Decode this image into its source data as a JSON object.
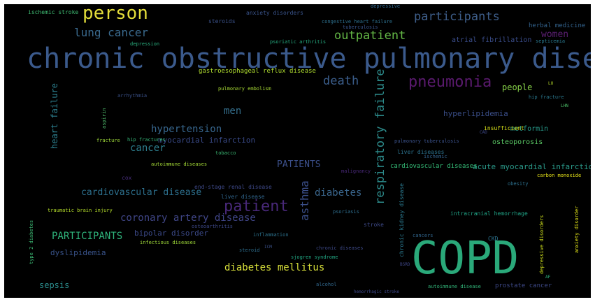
{
  "words": [
    {
      "text": "chronic obstructive pulmonary disease",
      "color": "#3b5a8c"
    },
    {
      "text": "COPD",
      "color": "#2aa97a"
    },
    {
      "text": "person",
      "color": "#e3dd3a"
    },
    {
      "text": "pneumonia",
      "color": "#5a1a6e"
    },
    {
      "text": "patient",
      "color": "#482878"
    },
    {
      "text": "participants",
      "color": "#3e5e8a"
    },
    {
      "text": "outpatient",
      "color": "#64b846"
    },
    {
      "text": "lung cancer",
      "color": "#3a6a8e"
    },
    {
      "text": "death",
      "color": "#3b5e8c"
    },
    {
      "text": "respiratory failure",
      "color": "#2c8a8a"
    },
    {
      "text": "asthma",
      "color": "#3b4f8a"
    },
    {
      "text": "women",
      "color": "#5b1f72"
    },
    {
      "text": "men",
      "color": "#35708e"
    },
    {
      "text": "hypertension",
      "color": "#37668d"
    },
    {
      "text": "cancer",
      "color": "#2e7e8e"
    },
    {
      "text": "heart failure",
      "color": "#2c7f8e"
    },
    {
      "text": "coronary artery disease",
      "color": "#404688"
    },
    {
      "text": "cardiovascular disease",
      "color": "#2d708e"
    },
    {
      "text": "diabetes",
      "color": "#3a668d"
    },
    {
      "text": "diabetes mellitus",
      "color": "#d8e03a"
    },
    {
      "text": "PARTICIPANTS",
      "color": "#2fb47c"
    },
    {
      "text": "PATIENTS",
      "color": "#3b4f8a"
    },
    {
      "text": "sepsis",
      "color": "#2b8c8c"
    },
    {
      "text": "dyslipidemia",
      "color": "#3a548c"
    },
    {
      "text": "bipolar disorder",
      "color": "#3c4a8a"
    },
    {
      "text": "myocardial infarction",
      "color": "#3a4b8a"
    },
    {
      "text": "acute myocardial infarction",
      "color": "#2a9a8a"
    },
    {
      "text": "cardiovascular diseases",
      "color": "#36c07a"
    },
    {
      "text": "hyperlipidemia",
      "color": "#3b4f8a"
    },
    {
      "text": "people",
      "color": "#86d048"
    },
    {
      "text": "metformin",
      "color": "#27998a"
    },
    {
      "text": "osteoporosis",
      "color": "#5ac864"
    },
    {
      "text": "atrial fibrillation",
      "color": "#3a4d8a"
    },
    {
      "text": "herbal medicine",
      "color": "#33638d"
    },
    {
      "text": "septicemia",
      "color": "#2a788e"
    },
    {
      "text": "gastroesophageal reflux disease",
      "color": "#b0dd2f"
    },
    {
      "text": "ischemic stroke",
      "color": "#3fbc73"
    },
    {
      "text": "anxiety disorders",
      "color": "#3a548c"
    },
    {
      "text": "steroids",
      "color": "#3b528b"
    },
    {
      "text": "congestive heart failure",
      "color": "#2d708e"
    },
    {
      "text": "tuberculosis",
      "color": "#39568c"
    },
    {
      "text": "psoriatic arthritis",
      "color": "#26ad81"
    },
    {
      "text": "depression",
      "color": "#2ab07f"
    },
    {
      "text": "depressive",
      "color": "#31688e"
    },
    {
      "text": "pulmonary embolism",
      "color": "#a8db34"
    },
    {
      "text": "arrhythmia",
      "color": "#3b528b"
    },
    {
      "text": "aspirin",
      "color": "#4fba6c"
    },
    {
      "text": "fracture",
      "color": "#9fda3a"
    },
    {
      "text": "hip fractures",
      "color": "#35b779"
    },
    {
      "text": "tobacco",
      "color": "#3bbb75"
    },
    {
      "text": "autoimmune diseases",
      "color": "#a5db36"
    },
    {
      "text": "cox",
      "color": "#472d7b"
    },
    {
      "text": "end-stage renal disease",
      "color": "#3e4989"
    },
    {
      "text": "liver disease",
      "color": "#31668e"
    },
    {
      "text": "liver diseases",
      "color": "#2c738e"
    },
    {
      "text": "ischemic",
      "color": "#33638d"
    },
    {
      "text": "pulmonary tuberculosis",
      "color": "#3b528b"
    },
    {
      "text": "insufficient",
      "color": "#dae319"
    },
    {
      "text": "hip fracture",
      "color": "#2a788e"
    },
    {
      "text": "LU",
      "color": "#b8de29"
    },
    {
      "text": "LHN",
      "color": "#4ec36b"
    },
    {
      "text": "carbon monoxide",
      "color": "#e7e419"
    },
    {
      "text": "obesity",
      "color": "#2d718e"
    },
    {
      "text": "malignancy",
      "color": "#482878"
    },
    {
      "text": "traumatic brain injury",
      "color": "#b5de2b"
    },
    {
      "text": "psoriasis",
      "color": "#2e6e8e"
    },
    {
      "text": "stroke",
      "color": "#3e4a89"
    },
    {
      "text": "inflammation",
      "color": "#2c728e"
    },
    {
      "text": "osteoarthritis",
      "color": "#3e4989"
    },
    {
      "text": "intracranial hemorrhage",
      "color": "#20a386"
    },
    {
      "text": "chronic kidney disease",
      "color": "#2a788e"
    },
    {
      "text": "cancers",
      "color": "#31668e"
    },
    {
      "text": "CKD",
      "color": "#2c728e"
    },
    {
      "text": "type 2 diabetes",
      "color": "#3cbb75"
    },
    {
      "text": "infectious diseases",
      "color": "#a0da39"
    },
    {
      "text": "steroid",
      "color": "#2e6e8e"
    },
    {
      "text": "ICM",
      "color": "#3b528b"
    },
    {
      "text": "sjogren syndrome",
      "color": "#22a884"
    },
    {
      "text": "chronic diseases",
      "color": "#3e4a89"
    },
    {
      "text": "alcohol",
      "color": "#31688e"
    },
    {
      "text": "hemorrhagic stroke",
      "color": "#3e4989"
    },
    {
      "text": "autoimmune disease",
      "color": "#32b67a"
    },
    {
      "text": "BSRD",
      "color": "#3f4788"
    },
    {
      "text": "prostate cancer",
      "color": "#3e4989"
    },
    {
      "text": "AF",
      "color": "#2db27d"
    },
    {
      "text": "depressive disorders",
      "color": "#d0e11c"
    },
    {
      "text": "anxiety disorder",
      "color": "#e2e418"
    },
    {
      "text": "CAD",
      "color": "#3e4989"
    }
  ]
}
